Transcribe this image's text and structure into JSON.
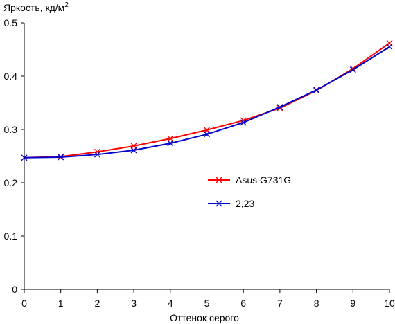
{
  "chart_data": {
    "type": "line",
    "ylabel": "Яркость, кд/м",
    "ylabel_sup": "2",
    "xlabel": "Оттенок серого",
    "xlim": [
      0,
      10
    ],
    "ylim": [
      0,
      0.5
    ],
    "x_ticks": [
      0,
      1,
      2,
      3,
      4,
      5,
      6,
      7,
      8,
      9,
      10
    ],
    "y_ticks": [
      0,
      0.1,
      0.2,
      0.3,
      0.4,
      0.5
    ],
    "x_tick_labels": [
      "0",
      "1",
      "2",
      "3",
      "4",
      "5",
      "6",
      "7",
      "8",
      "9",
      "10"
    ],
    "y_tick_labels": [
      "0",
      "0.1",
      "0.2",
      "0.3",
      "0.4",
      "0.5"
    ],
    "grid": false,
    "legend_position": "center-right",
    "x": [
      0,
      1,
      2,
      3,
      4,
      5,
      6,
      7,
      8,
      9,
      10
    ],
    "series": [
      {
        "name": "Asus G731G",
        "color": "#ff0000",
        "marker": "x",
        "values": [
          0.247,
          0.249,
          0.258,
          0.269,
          0.283,
          0.299,
          0.317,
          0.34,
          0.373,
          0.414,
          0.462
        ]
      },
      {
        "name": "2,23",
        "color": "#0000cc",
        "marker": "x",
        "values": [
          0.247,
          0.248,
          0.253,
          0.261,
          0.274,
          0.291,
          0.313,
          0.342,
          0.374,
          0.412,
          0.455
        ]
      }
    ]
  }
}
